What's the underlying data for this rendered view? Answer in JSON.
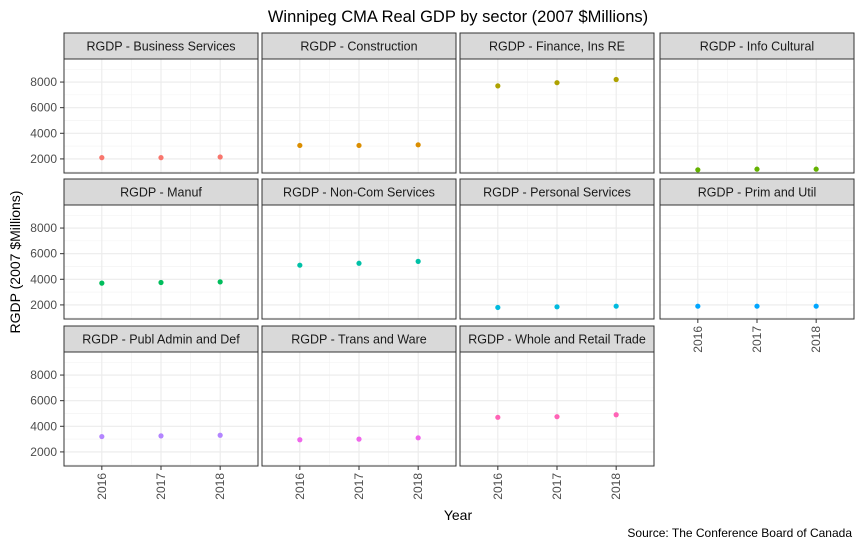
{
  "chart_data": {
    "type": "scatter",
    "title": "Winnipeg CMA Real GDP by sector (2007 $Millions)",
    "xlabel": "Year",
    "ylabel": "RGDP (2007 $Millions)",
    "caption": "Source: The Conference Board of Canada",
    "x": [
      "2016",
      "2017",
      "2018"
    ],
    "y_ticks": [
      2000,
      4000,
      6000,
      8000
    ],
    "ylim": [
      900,
      9800
    ],
    "grid": true,
    "facets": [
      {
        "name": "RGDP - Business Services",
        "color": "#F8766D",
        "values": [
          2100,
          2100,
          2150
        ]
      },
      {
        "name": "RGDP - Construction",
        "color": "#DB8E00",
        "values": [
          3050,
          3050,
          3100
        ]
      },
      {
        "name": "RGDP - Finance, Ins RE",
        "color": "#AEA200",
        "values": [
          7700,
          7950,
          8200
        ]
      },
      {
        "name": "RGDP - Info Cultural",
        "color": "#64B200",
        "values": [
          1150,
          1200,
          1200
        ]
      },
      {
        "name": "RGDP - Manuf",
        "color": "#00BD5C",
        "values": [
          3700,
          3750,
          3800
        ]
      },
      {
        "name": "RGDP - Non-Com Services",
        "color": "#00C1A7",
        "values": [
          5100,
          5250,
          5400
        ]
      },
      {
        "name": "RGDP - Personal Services",
        "color": "#00BADE",
        "values": [
          1800,
          1850,
          1900
        ]
      },
      {
        "name": "RGDP - Prim and Util",
        "color": "#00A6FF",
        "values": [
          1900,
          1900,
          1900
        ]
      },
      {
        "name": "RGDP - Publ Admin and Def",
        "color": "#B385FF",
        "values": [
          3200,
          3250,
          3300
        ]
      },
      {
        "name": "RGDP - Trans and Ware",
        "color": "#EF67EB",
        "values": [
          2950,
          3000,
          3100
        ]
      },
      {
        "name": "RGDP - Whole and Retail Trade",
        "color": "#FF63B6",
        "values": [
          4700,
          4750,
          4900
        ]
      }
    ]
  }
}
